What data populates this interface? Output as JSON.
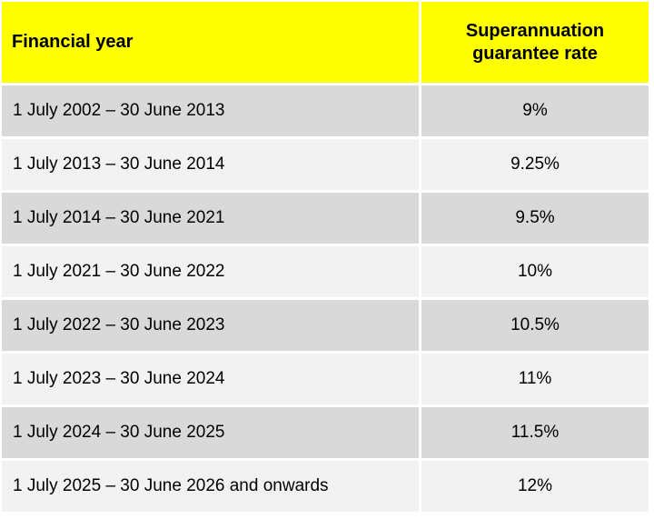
{
  "table": {
    "headers": {
      "financial_year": "Financial year",
      "rate_line1": "Superannuation",
      "rate_line2": "guarantee rate"
    },
    "rows": [
      {
        "year": "1 July 2002 – 30 June 2013",
        "rate": "9%"
      },
      {
        "year": "1 July 2013 – 30 June 2014",
        "rate": "9.25%"
      },
      {
        "year": "1 July 2014 – 30 June 2021",
        "rate": "9.5%"
      },
      {
        "year": "1 July 2021 – 30 June 2022",
        "rate": "10%"
      },
      {
        "year": "1 July 2022 – 30 June 2023",
        "rate": "10.5%"
      },
      {
        "year": "1 July 2023 – 30 June 2024",
        "rate": "11%"
      },
      {
        "year": "1 July 2024 – 30 June 2025",
        "rate": "11.5%"
      },
      {
        "year": "1 July 2025 – 30 June 2026 and onwards",
        "rate": "12%"
      }
    ]
  },
  "colors": {
    "header_background": "#ffff00",
    "row_dark": "#d9d9d9",
    "row_light": "#f2f2f2"
  }
}
